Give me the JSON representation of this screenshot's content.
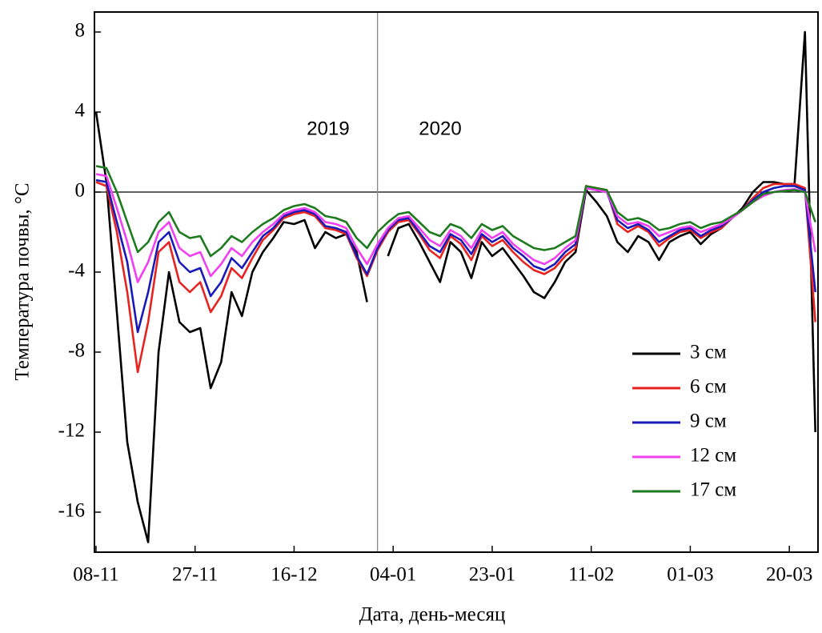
{
  "chart_data": {
    "type": "line",
    "x_label": "Дата, день-месяц",
    "y_label": "Температура почвы, °С",
    "annotations": [
      "2019",
      "2020"
    ],
    "divider_x": 54,
    "zero_line": 0,
    "legend": "lower right",
    "xlim": [
      -0.3,
      138.5
    ],
    "ylim": [
      -18,
      9
    ],
    "xticks": [
      {
        "value": 0,
        "label": "08-11"
      },
      {
        "value": 19,
        "label": "27-11"
      },
      {
        "value": 38,
        "label": "16-12"
      },
      {
        "value": 57,
        "label": "04-01"
      },
      {
        "value": 76,
        "label": "23-01"
      },
      {
        "value": 95,
        "label": "11-02"
      },
      {
        "value": 114,
        "label": "01-03"
      },
      {
        "value": 133,
        "label": "20-03"
      }
    ],
    "yticks": [
      -16,
      -12,
      -8,
      -4,
      0,
      4,
      8
    ],
    "x": [
      0,
      2,
      4,
      6,
      8,
      10,
      12,
      14,
      16,
      18,
      20,
      22,
      24,
      26,
      28,
      30,
      32,
      34,
      36,
      38,
      40,
      42,
      44,
      46,
      48,
      50,
      52,
      54,
      56,
      58,
      60,
      62,
      64,
      66,
      68,
      70,
      72,
      74,
      76,
      78,
      80,
      82,
      84,
      86,
      88,
      90,
      92,
      94,
      96,
      98,
      100,
      102,
      104,
      106,
      108,
      110,
      112,
      114,
      116,
      118,
      120,
      122,
      124,
      126,
      128,
      130,
      132,
      134,
      136,
      138
    ],
    "series": [
      {
        "name": "3 см",
        "color": "#000000",
        "values": [
          4,
          0.5,
          -6,
          -12.5,
          -15.5,
          -17.5,
          -8,
          -4,
          -6.5,
          -7,
          -6.8,
          -9.8,
          -8.5,
          -5,
          -6.2,
          -4,
          -3,
          -2.3,
          -1.5,
          -1.6,
          -1.4,
          -2.8,
          -2,
          -2.3,
          -2.1,
          -3,
          -5.5,
          null,
          -3.2,
          -1.8,
          -1.6,
          -2.5,
          -3.5,
          -4.5,
          -2.5,
          -3,
          -4.3,
          -2.5,
          -3.2,
          -2.8,
          -3.5,
          -4.2,
          -5,
          -5.3,
          -4.5,
          -3.5,
          -3,
          0.1,
          -0.5,
          -1.2,
          -2.5,
          -3,
          -2.2,
          -2.5,
          -3.4,
          -2.5,
          -2.2,
          -2,
          -2.6,
          -2.1,
          -1.8,
          -1.3,
          -0.8,
          0,
          0.5,
          0.5,
          0.4,
          0.4,
          8,
          -12
        ]
      },
      {
        "name": "6 см",
        "color": "#e8231f",
        "values": [
          0.5,
          0.3,
          -2,
          -5,
          -9,
          -6.5,
          -3,
          -2.5,
          -4.5,
          -5,
          -4.5,
          -6,
          -5.2,
          -3.8,
          -4.3,
          -3.3,
          -2.4,
          -1.9,
          -1.3,
          -1.1,
          -1,
          -1.2,
          -1.8,
          -1.9,
          -2.1,
          -3.3,
          -4.2,
          -2.9,
          -2,
          -1.5,
          -1.4,
          -2.1,
          -2.9,
          -3.3,
          -2.2,
          -2.6,
          -3.4,
          -2.2,
          -2.7,
          -2.4,
          -3,
          -3.5,
          -3.9,
          -4.1,
          -3.8,
          -3.2,
          -2.8,
          0.3,
          0.2,
          0.1,
          -1.6,
          -2,
          -1.7,
          -2,
          -2.7,
          -2.3,
          -2,
          -1.9,
          -2.3,
          -2,
          -1.8,
          -1.3,
          -0.9,
          -0.3,
          0.2,
          0.4,
          0.4,
          0.4,
          0.2,
          -6.5
        ]
      },
      {
        "name": "9 см",
        "color": "#1a1ab8",
        "values": [
          0.6,
          0.5,
          -1.5,
          -3.5,
          -7,
          -5,
          -2.5,
          -2,
          -3.5,
          -4,
          -3.8,
          -5.2,
          -4.5,
          -3.3,
          -3.8,
          -3,
          -2.2,
          -1.8,
          -1.2,
          -1,
          -0.9,
          -1.1,
          -1.7,
          -1.8,
          -2,
          -3.2,
          -4.1,
          -2.8,
          -1.9,
          -1.4,
          -1.3,
          -2,
          -2.7,
          -3,
          -2.1,
          -2.4,
          -3.1,
          -2.1,
          -2.5,
          -2.2,
          -2.8,
          -3.2,
          -3.7,
          -3.9,
          -3.6,
          -3,
          -2.6,
          0.2,
          0.1,
          0,
          -1.4,
          -1.8,
          -1.6,
          -1.9,
          -2.5,
          -2.2,
          -1.9,
          -1.8,
          -2.2,
          -1.9,
          -1.7,
          -1.3,
          -0.9,
          -0.4,
          0,
          0.2,
          0.3,
          0.3,
          0.1,
          -5
        ]
      },
      {
        "name": "12 см",
        "color": "#f040f0",
        "values": [
          0.9,
          0.8,
          -0.8,
          -2.5,
          -4.5,
          -3.5,
          -2,
          -1.5,
          -2.8,
          -3.2,
          -3,
          -4.2,
          -3.6,
          -2.8,
          -3.2,
          -2.5,
          -2,
          -1.6,
          -1.1,
          -0.9,
          -0.8,
          -1,
          -1.5,
          -1.6,
          -1.8,
          -2.8,
          -3.6,
          -2.6,
          -1.8,
          -1.3,
          -1.2,
          -1.8,
          -2.4,
          -2.7,
          -1.9,
          -2.2,
          -2.8,
          -1.9,
          -2.3,
          -2,
          -2.6,
          -3,
          -3.4,
          -3.6,
          -3.3,
          -2.8,
          -2.4,
          0.2,
          0.1,
          0,
          -1.2,
          -1.6,
          -1.5,
          -1.7,
          -2.2,
          -2,
          -1.8,
          -1.7,
          -2,
          -1.8,
          -1.6,
          -1.3,
          -0.9,
          -0.5,
          -0.2,
          0,
          0.1,
          0.15,
          0,
          -3
        ]
      },
      {
        "name": "17 см",
        "color": "#1e7a1e",
        "values": [
          1.3,
          1.2,
          0,
          -1.5,
          -3,
          -2.5,
          -1.5,
          -1,
          -2,
          -2.3,
          -2.2,
          -3.2,
          -2.8,
          -2.2,
          -2.5,
          -2,
          -1.6,
          -1.3,
          -0.9,
          -0.7,
          -0.6,
          -0.8,
          -1.2,
          -1.3,
          -1.5,
          -2.3,
          -2.8,
          -2,
          -1.5,
          -1.1,
          -1,
          -1.5,
          -2,
          -2.2,
          -1.6,
          -1.8,
          -2.3,
          -1.6,
          -1.9,
          -1.7,
          -2.2,
          -2.5,
          -2.8,
          -2.9,
          -2.8,
          -2.5,
          -2.2,
          0.3,
          0.2,
          0.1,
          -1,
          -1.4,
          -1.3,
          -1.5,
          -1.9,
          -1.8,
          -1.6,
          -1.5,
          -1.8,
          -1.6,
          -1.5,
          -1.2,
          -0.9,
          -0.5,
          -0.1,
          0,
          0.05,
          0.1,
          0,
          -1.5
        ]
      }
    ]
  }
}
